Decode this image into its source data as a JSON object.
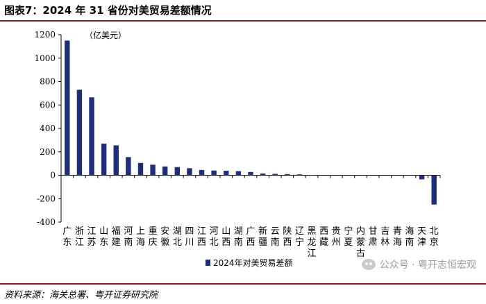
{
  "title": "图表7：2024 年 31 省份对美贸易差额情况",
  "source": "资料来源：海关总署、粤开证券研究院",
  "watermark": "公众号 · 粤开志恒宏观",
  "colors": {
    "bar": "#1f2e7a",
    "rule": "#8a1c1c",
    "axis": "#000000"
  },
  "chart_data": {
    "type": "bar",
    "unit_label": "（亿美元）",
    "categories": [
      "广东",
      "浙江",
      "江苏",
      "山东",
      "福建",
      "河南",
      "上海",
      "重庆",
      "安徽",
      "湖北",
      "四川",
      "江西",
      "河北",
      "山西",
      "湖南",
      "广西",
      "新疆",
      "云南",
      "陕西",
      "辽宁",
      "黑龙江",
      "西藏",
      "贵州",
      "宁夏",
      "内蒙古",
      "甘肃",
      "吉林",
      "青海",
      "海南",
      "天津",
      "北京"
    ],
    "series": [
      {
        "name": "2024年对美贸易差额",
        "values": [
          1150,
          730,
          665,
          270,
          255,
          155,
          105,
          90,
          75,
          70,
          60,
          45,
          40,
          38,
          35,
          28,
          15,
          12,
          10,
          8,
          3,
          1,
          0,
          0,
          0,
          0,
          0,
          0,
          -2,
          -35,
          -250
        ]
      }
    ],
    "ylim": [
      -400,
      1200
    ],
    "yticks": [
      -400,
      -200,
      0,
      200,
      400,
      600,
      800,
      1000,
      1200
    ],
    "grid": false,
    "legend": "bottom-center"
  }
}
